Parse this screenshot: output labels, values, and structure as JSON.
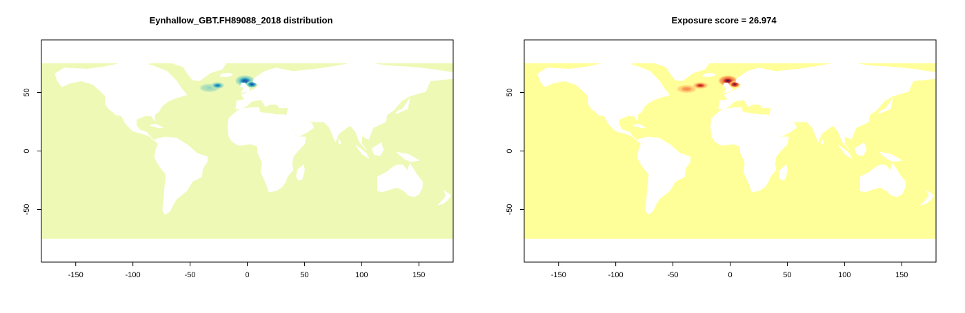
{
  "panels": [
    {
      "title": "Eynhallow_GBT.FH89088_2018 distribution",
      "ocean_color": "#EEF9B6",
      "palette": [
        "#C7E9B4",
        "#7FCDBB",
        "#41B6C4",
        "#1D91C0",
        "#225EA8",
        "#0C2C84"
      ],
      "hotspots": [
        {
          "lon": -33,
          "lat": 54,
          "rlon": 10,
          "rlat": 4,
          "value": 0.35
        },
        {
          "lon": -26,
          "lat": 56,
          "rlon": 6,
          "rlat": 3,
          "value": 0.75
        },
        {
          "lon": -2,
          "lat": 60,
          "rlon": 9,
          "rlat": 5,
          "value": 0.85
        },
        {
          "lon": 4,
          "lat": 57,
          "rlon": 5,
          "rlat": 3,
          "value": 1.0
        }
      ],
      "x_ticks": [
        "-150",
        "-100",
        "-50",
        "0",
        "50",
        "100",
        "150"
      ],
      "y_ticks": [
        "-50",
        "0",
        "50"
      ]
    },
    {
      "title": "Exposure score = 26.974",
      "ocean_color": "#FFFF99",
      "palette": [
        "#FFE18B",
        "#FDB15A",
        "#F4763A",
        "#D43A2A",
        "#8B1535",
        "#1A1A40"
      ],
      "hotspots": [
        {
          "lon": -38,
          "lat": 53,
          "rlon": 10,
          "rlat": 4,
          "value": 0.45
        },
        {
          "lon": -26,
          "lat": 56,
          "rlon": 7,
          "rlat": 3,
          "value": 0.8
        },
        {
          "lon": -2,
          "lat": 60,
          "rlon": 9,
          "rlat": 5,
          "value": 0.9
        },
        {
          "lon": 4,
          "lat": 57,
          "rlon": 5,
          "rlat": 3,
          "value": 1.0
        }
      ],
      "x_ticks": [
        "-150",
        "-100",
        "-50",
        "0",
        "50",
        "100",
        "150"
      ],
      "y_ticks": [
        "-50",
        "0",
        "50"
      ]
    }
  ],
  "map_extent": {
    "lon": [
      -180,
      180
    ],
    "lat": [
      -95,
      95
    ],
    "data_lat": [
      -75,
      75
    ]
  }
}
